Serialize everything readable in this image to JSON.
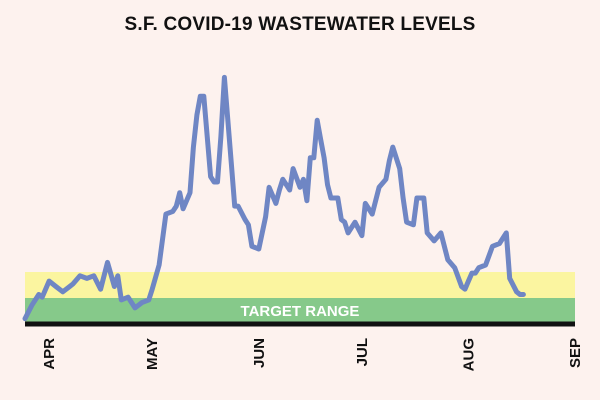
{
  "chart_data": {
    "type": "line",
    "title": "S.F. COVID-19 WASTEWATER LEVELS",
    "x_ticks": [
      "APR",
      "MAY",
      "JUN",
      "JUL",
      "AUG",
      "SEP"
    ],
    "xlim": [
      "2022-03-25",
      "2022-09-01"
    ],
    "ylim": [
      0,
      100
    ],
    "band_label": "TARGET RANGE",
    "colors": {
      "line": "#6f86c4",
      "caution_band": "#fbf5a0",
      "target_band": "#86c98a",
      "baseline": "#111111",
      "background": "#fdf2ee"
    },
    "series": [
      {
        "dates": [
          "2022-03-25",
          "2022-03-27",
          "2022-03-29",
          "2022-03-30",
          "2022-04-01",
          "2022-04-03",
          "2022-04-05",
          "2022-04-07",
          "2022-04-08",
          "2022-04-10",
          "2022-04-12",
          "2022-04-14",
          "2022-04-16",
          "2022-04-18",
          "2022-04-20",
          "2022-04-21",
          "2022-04-22",
          "2022-04-24",
          "2022-04-26",
          "2022-04-28",
          "2022-04-30",
          "2022-05-01",
          "2022-05-03",
          "2022-05-05",
          "2022-05-07",
          "2022-05-08",
          "2022-05-09",
          "2022-05-10",
          "2022-05-12",
          "2022-05-13",
          "2022-05-14",
          "2022-05-15",
          "2022-05-16",
          "2022-05-18",
          "2022-05-19",
          "2022-05-20",
          "2022-05-21",
          "2022-05-22",
          "2022-05-24",
          "2022-05-25",
          "2022-05-26",
          "2022-05-28",
          "2022-05-29",
          "2022-05-30",
          "2022-06-01",
          "2022-06-03",
          "2022-06-04",
          "2022-06-06",
          "2022-06-07",
          "2022-06-08",
          "2022-06-10",
          "2022-06-11",
          "2022-06-13",
          "2022-06-14",
          "2022-06-15",
          "2022-06-16",
          "2022-06-17",
          "2022-06-18",
          "2022-06-19",
          "2022-06-20",
          "2022-06-21",
          "2022-06-22",
          "2022-06-24",
          "2022-06-25",
          "2022-06-26",
          "2022-06-27",
          "2022-06-29",
          "2022-07-01",
          "2022-07-02",
          "2022-07-04",
          "2022-07-06",
          "2022-07-08",
          "2022-07-09",
          "2022-07-10",
          "2022-07-12",
          "2022-07-13",
          "2022-07-14",
          "2022-07-16",
          "2022-07-17",
          "2022-07-19",
          "2022-07-20",
          "2022-07-22",
          "2022-07-24",
          "2022-07-26",
          "2022-07-28",
          "2022-07-30",
          "2022-07-31",
          "2022-08-01",
          "2022-08-02",
          "2022-08-03",
          "2022-08-04",
          "2022-08-06",
          "2022-08-08",
          "2022-08-10",
          "2022-08-12",
          "2022-08-13",
          "2022-08-15",
          "2022-08-16",
          "2022-08-17"
        ],
        "values": [
          2,
          7,
          11,
          10,
          16,
          14,
          12,
          14,
          15,
          18,
          17,
          18,
          13,
          23,
          14,
          18,
          9,
          10,
          6,
          8,
          9,
          13,
          22,
          41,
          42,
          44,
          49,
          43,
          49,
          66,
          78,
          85,
          85,
          55,
          53,
          53,
          70,
          92,
          60,
          44,
          44,
          39,
          37,
          29,
          28,
          40,
          51,
          45,
          50,
          54,
          50,
          58,
          51,
          54,
          46,
          62,
          62,
          76,
          69,
          62,
          52,
          47,
          47,
          39,
          38,
          34,
          38,
          33,
          45,
          41,
          51,
          54,
          61,
          66,
          58,
          47,
          38,
          37,
          47,
          47,
          34,
          31,
          34,
          24,
          21,
          14,
          13,
          16,
          19,
          19,
          21,
          22,
          29,
          30,
          34,
          17,
          12,
          11,
          11
        ]
      }
    ]
  }
}
